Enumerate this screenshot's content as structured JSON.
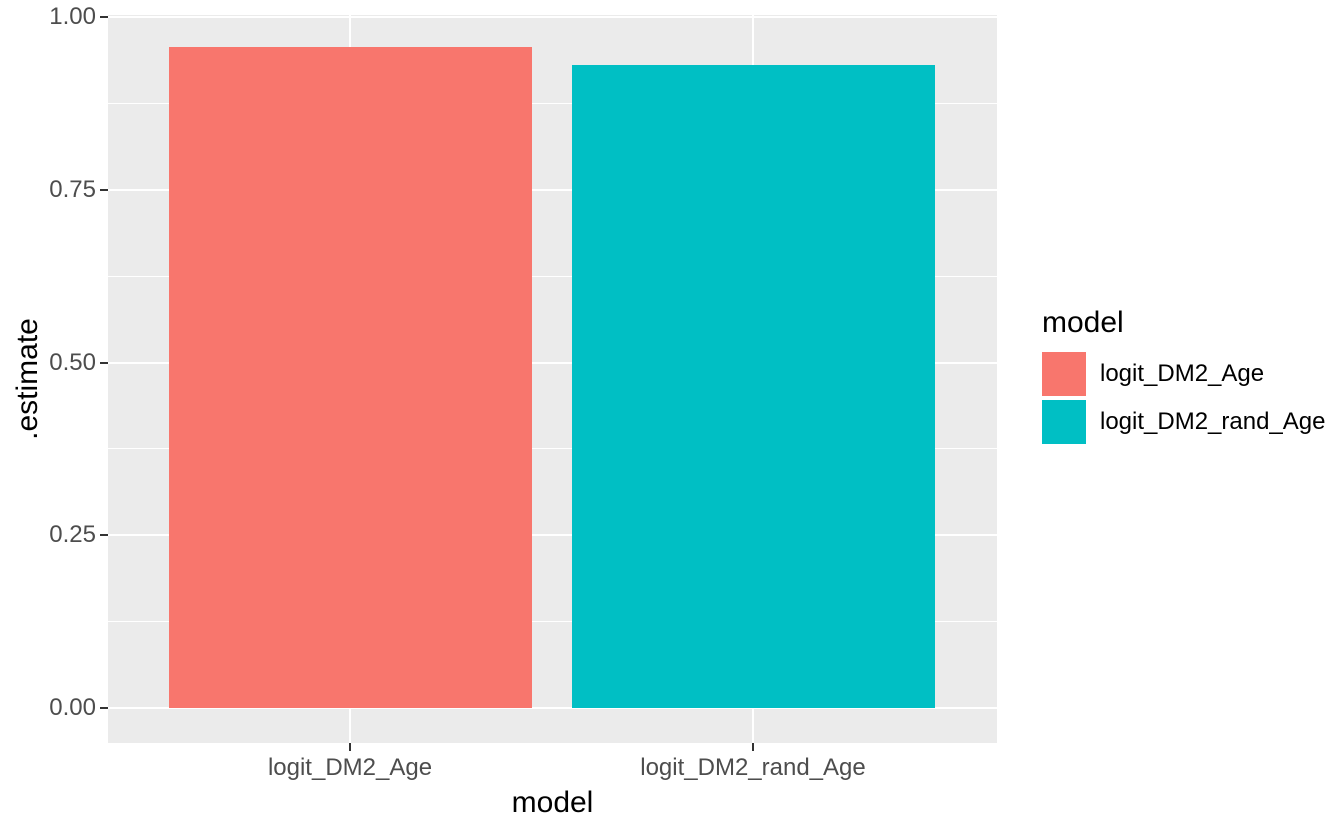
{
  "figure": {
    "background": "#FFFFFF",
    "panel_background": "#EBEBEB",
    "gridline_color": "#FFFFFF",
    "axis_text_color": "#4D4D4D",
    "tick_mark_color": "#333333",
    "title_text_color": "#000000"
  },
  "chart_data": {
    "type": "bar",
    "title": "",
    "xlabel": "model",
    "ylabel": ".estimate",
    "categories": [
      "logit_DM2_Age",
      "logit_DM2_rand_Age"
    ],
    "values": [
      0.956,
      0.93
    ],
    "bar_colors": [
      "#F8766D",
      "#00BFC4"
    ],
    "ylim": [
      -0.048,
      1.003
    ],
    "y_major_ticks": [
      0.0,
      0.25,
      0.5,
      0.75,
      1.0
    ],
    "y_tick_labels": [
      "0.00",
      "0.25",
      "0.50",
      "0.75",
      "1.00"
    ],
    "y_minor_ticks": [
      0.125,
      0.375,
      0.625,
      0.875
    ],
    "grid": "white major and minor gridlines on gray panel",
    "legend_position": "right",
    "legend": {
      "title": "model",
      "entries": [
        {
          "label": "logit_DM2_Age",
          "color": "#F8766D"
        },
        {
          "label": "logit_DM2_rand_Age",
          "color": "#00BFC4"
        }
      ]
    }
  }
}
